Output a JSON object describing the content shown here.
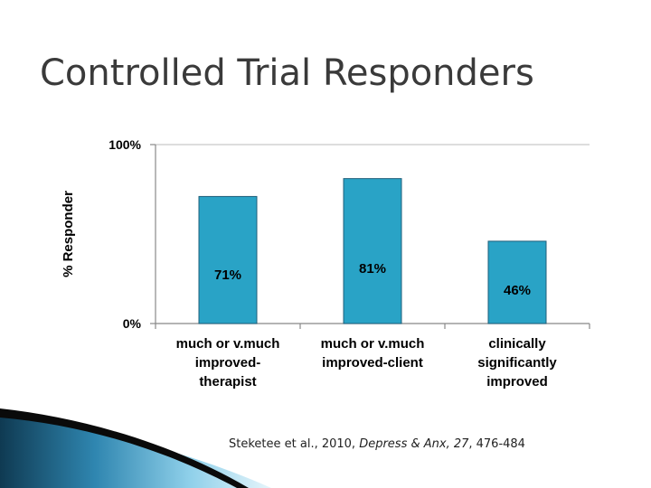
{
  "slide": {
    "title": "Controlled Trial Responders"
  },
  "citation": {
    "authors": "Steketee  et al., 2010, ",
    "journal": "Depress & Anx, 27",
    "pages": ", 476-484"
  },
  "colors": {
    "bar_fill": "#29a3c6",
    "bar_stroke": "#1f5f7a",
    "axis": "#888888",
    "grid": "#bbbbbb",
    "deco_dark": "#0f3a52",
    "deco_light": "#8fd0ea"
  },
  "chart_data": {
    "type": "bar",
    "categories": [
      [
        "much or v.much",
        "improved-",
        "therapist"
      ],
      [
        "much or v.much",
        "improved-client"
      ],
      [
        "clinically",
        "significantly",
        "improved"
      ]
    ],
    "values": [
      71,
      81,
      46
    ],
    "data_labels": [
      "71%",
      "81%",
      "46%"
    ],
    "ylabel": "% Responder",
    "ylim": [
      0,
      100
    ],
    "yticks": [
      "0%",
      "100%"
    ],
    "grid": true,
    "legend": false
  }
}
